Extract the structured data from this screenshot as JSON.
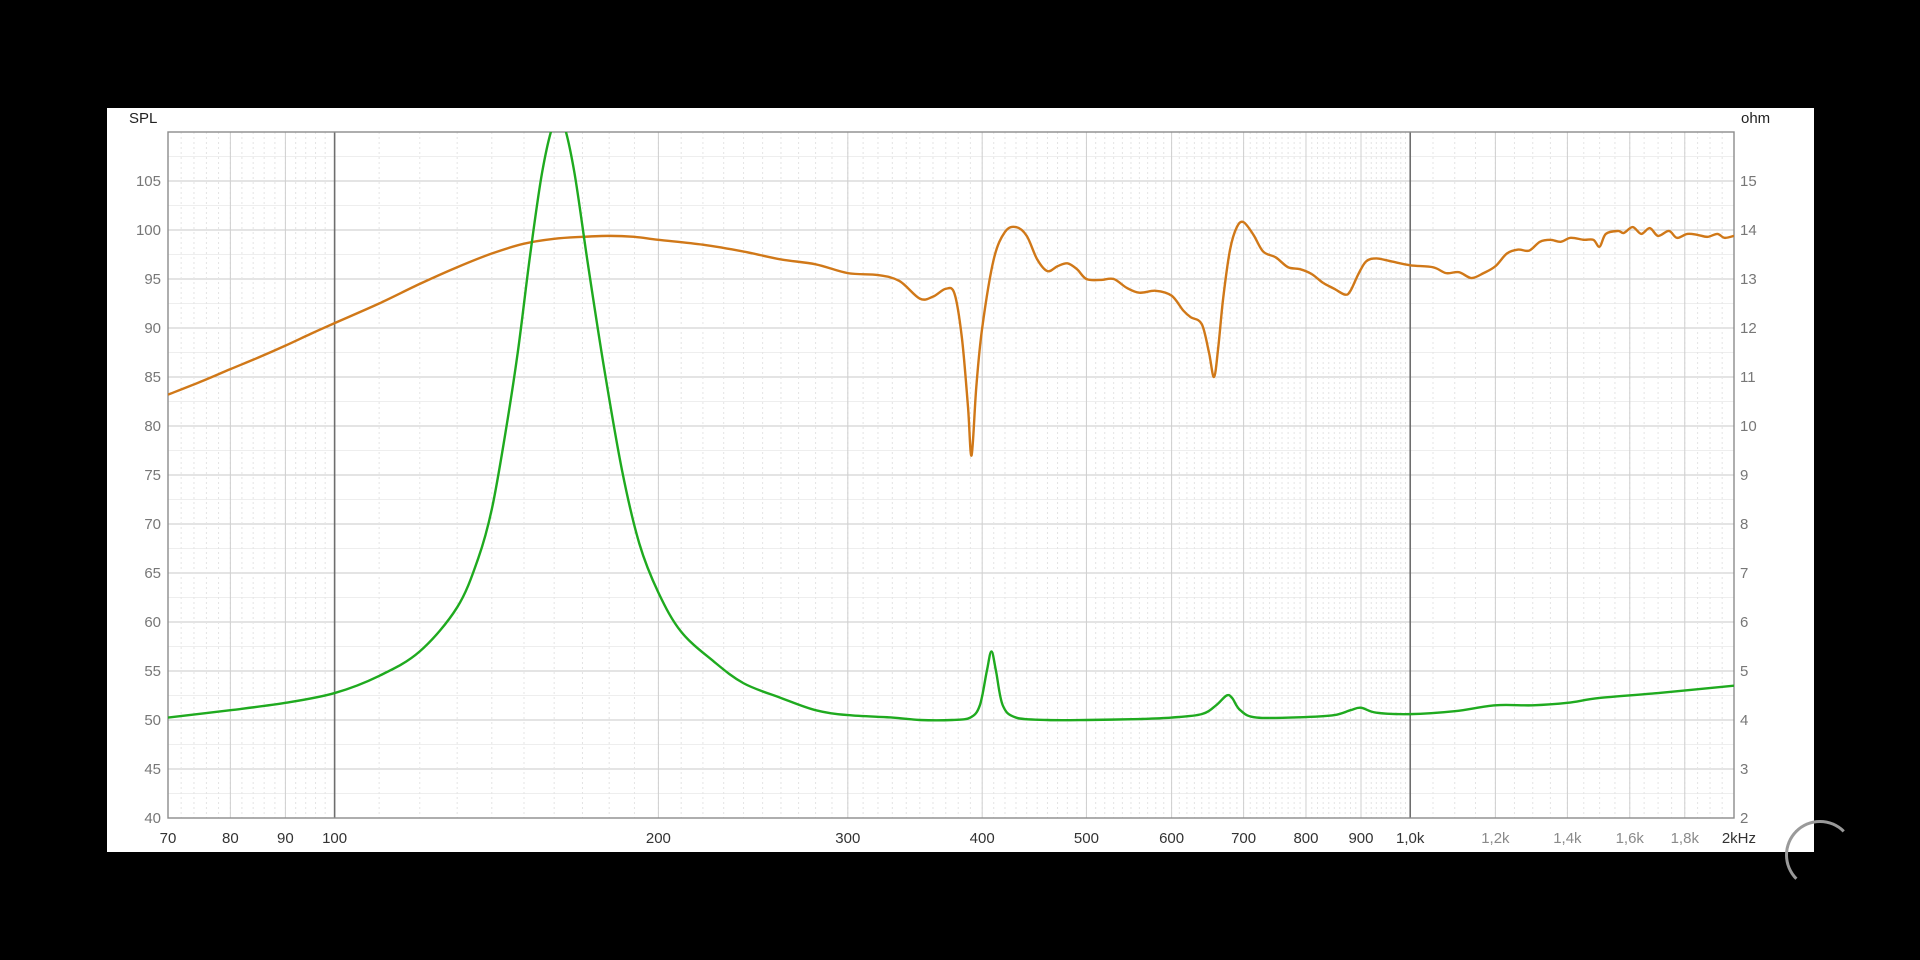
{
  "chart_data": {
    "type": "line",
    "x_scale": "log",
    "xlim": [
      70,
      2000
    ],
    "x_ticks": [
      {
        "value": 70,
        "label": "70",
        "major": true
      },
      {
        "value": 80,
        "label": "80",
        "major": true
      },
      {
        "value": 90,
        "label": "90",
        "major": true
      },
      {
        "value": 100,
        "label": "100",
        "major": true
      },
      {
        "value": 200,
        "label": "200",
        "major": true
      },
      {
        "value": 300,
        "label": "300",
        "major": true
      },
      {
        "value": 400,
        "label": "400",
        "major": true
      },
      {
        "value": 500,
        "label": "500",
        "major": true
      },
      {
        "value": 600,
        "label": "600",
        "major": true
      },
      {
        "value": 700,
        "label": "700",
        "major": true
      },
      {
        "value": 800,
        "label": "800",
        "major": true
      },
      {
        "value": 900,
        "label": "900",
        "major": true
      },
      {
        "value": 1000,
        "label": "1,0k",
        "major": true
      },
      {
        "value": 1200,
        "label": "1,2k",
        "major": false
      },
      {
        "value": 1400,
        "label": "1,4k",
        "major": false
      },
      {
        "value": 1600,
        "label": "1,6k",
        "major": false
      },
      {
        "value": 1800,
        "label": "1,8k",
        "major": false
      },
      {
        "value": 2000,
        "label": "2kHz",
        "major": true
      }
    ],
    "y_left": {
      "label": "SPL",
      "lim": [
        40,
        110
      ],
      "ticks": [
        40,
        45,
        50,
        55,
        60,
        65,
        70,
        75,
        80,
        85,
        90,
        95,
        100,
        105
      ]
    },
    "y_right": {
      "label": "ohm",
      "lim": [
        2,
        16
      ],
      "ticks": [
        2,
        3,
        4,
        5,
        6,
        7,
        8,
        9,
        10,
        11,
        12,
        13,
        14,
        15
      ]
    },
    "grid": true,
    "series": [
      {
        "axis": "left",
        "color": "#d07818",
        "points": [
          [
            70,
            83.2
          ],
          [
            75,
            84.5
          ],
          [
            80,
            85.8
          ],
          [
            85,
            87.0
          ],
          [
            90,
            88.2
          ],
          [
            95,
            89.4
          ],
          [
            100,
            90.5
          ],
          [
            110,
            92.5
          ],
          [
            120,
            94.5
          ],
          [
            130,
            96.2
          ],
          [
            140,
            97.6
          ],
          [
            150,
            98.6
          ],
          [
            160,
            99.1
          ],
          [
            170,
            99.3
          ],
          [
            180,
            99.4
          ],
          [
            190,
            99.3
          ],
          [
            200,
            99.0
          ],
          [
            220,
            98.5
          ],
          [
            240,
            97.8
          ],
          [
            260,
            97.0
          ],
          [
            280,
            96.5
          ],
          [
            300,
            95.6
          ],
          [
            320,
            95.4
          ],
          [
            335,
            94.8
          ],
          [
            350,
            93.0
          ],
          [
            360,
            93.2
          ],
          [
            370,
            94.0
          ],
          [
            377,
            93.5
          ],
          [
            383,
            89.0
          ],
          [
            388,
            82.0
          ],
          [
            391,
            77.0
          ],
          [
            395,
            84.0
          ],
          [
            400,
            90.0
          ],
          [
            410,
            97.0
          ],
          [
            420,
            99.8
          ],
          [
            430,
            100.3
          ],
          [
            440,
            99.4
          ],
          [
            450,
            97.0
          ],
          [
            460,
            95.8
          ],
          [
            470,
            96.3
          ],
          [
            480,
            96.6
          ],
          [
            490,
            96.0
          ],
          [
            500,
            95.0
          ],
          [
            515,
            94.9
          ],
          [
            530,
            95.0
          ],
          [
            545,
            94.1
          ],
          [
            560,
            93.6
          ],
          [
            580,
            93.8
          ],
          [
            600,
            93.3
          ],
          [
            615,
            91.8
          ],
          [
            625,
            91.1
          ],
          [
            640,
            90.4
          ],
          [
            650,
            87.5
          ],
          [
            657,
            85.0
          ],
          [
            663,
            88.0
          ],
          [
            670,
            93.0
          ],
          [
            680,
            98.0
          ],
          [
            690,
            100.3
          ],
          [
            700,
            100.8
          ],
          [
            715,
            99.5
          ],
          [
            730,
            97.8
          ],
          [
            750,
            97.2
          ],
          [
            770,
            96.2
          ],
          [
            790,
            96.0
          ],
          [
            810,
            95.5
          ],
          [
            830,
            94.6
          ],
          [
            850,
            94.0
          ],
          [
            870,
            93.4
          ],
          [
            880,
            93.8
          ],
          [
            895,
            95.5
          ],
          [
            910,
            96.8
          ],
          [
            930,
            97.1
          ],
          [
            960,
            96.8
          ],
          [
            1000,
            96.4
          ],
          [
            1050,
            96.2
          ],
          [
            1080,
            95.6
          ],
          [
            1110,
            95.7
          ],
          [
            1140,
            95.1
          ],
          [
            1170,
            95.6
          ],
          [
            1200,
            96.3
          ],
          [
            1230,
            97.6
          ],
          [
            1260,
            98.0
          ],
          [
            1290,
            97.9
          ],
          [
            1320,
            98.8
          ],
          [
            1350,
            99.0
          ],
          [
            1380,
            98.8
          ],
          [
            1410,
            99.2
          ],
          [
            1450,
            99.0
          ],
          [
            1480,
            99.0
          ],
          [
            1500,
            98.3
          ],
          [
            1520,
            99.6
          ],
          [
            1560,
            99.9
          ],
          [
            1580,
            99.7
          ],
          [
            1610,
            100.3
          ],
          [
            1640,
            99.6
          ],
          [
            1670,
            100.2
          ],
          [
            1700,
            99.4
          ],
          [
            1740,
            99.9
          ],
          [
            1770,
            99.2
          ],
          [
            1810,
            99.6
          ],
          [
            1850,
            99.5
          ],
          [
            1890,
            99.3
          ],
          [
            1930,
            99.6
          ],
          [
            1960,
            99.2
          ],
          [
            2000,
            99.4
          ]
        ]
      },
      {
        "axis": "right",
        "color": "#1faa1f",
        "points": [
          [
            70,
            4.05
          ],
          [
            80,
            4.2
          ],
          [
            90,
            4.35
          ],
          [
            100,
            4.55
          ],
          [
            110,
            4.9
          ],
          [
            120,
            5.4
          ],
          [
            130,
            6.3
          ],
          [
            136,
            7.3
          ],
          [
            140,
            8.3
          ],
          [
            144,
            9.8
          ],
          [
            148,
            11.5
          ],
          [
            152,
            13.5
          ],
          [
            156,
            15.2
          ],
          [
            160,
            16.2
          ],
          [
            163,
            16.2
          ],
          [
            167,
            15.2
          ],
          [
            172,
            13.3
          ],
          [
            178,
            11.2
          ],
          [
            185,
            9.1
          ],
          [
            192,
            7.6
          ],
          [
            200,
            6.6
          ],
          [
            210,
            5.8
          ],
          [
            225,
            5.2
          ],
          [
            240,
            4.75
          ],
          [
            260,
            4.45
          ],
          [
            280,
            4.2
          ],
          [
            300,
            4.1
          ],
          [
            330,
            4.05
          ],
          [
            350,
            4.0
          ],
          [
            375,
            4.0
          ],
          [
            390,
            4.05
          ],
          [
            398,
            4.3
          ],
          [
            404,
            5.0
          ],
          [
            408,
            5.4
          ],
          [
            412,
            5.0
          ],
          [
            418,
            4.3
          ],
          [
            430,
            4.05
          ],
          [
            460,
            4.0
          ],
          [
            500,
            4.0
          ],
          [
            560,
            4.02
          ],
          [
            600,
            4.05
          ],
          [
            640,
            4.12
          ],
          [
            660,
            4.3
          ],
          [
            675,
            4.5
          ],
          [
            683,
            4.45
          ],
          [
            695,
            4.2
          ],
          [
            720,
            4.05
          ],
          [
            800,
            4.06
          ],
          [
            850,
            4.1
          ],
          [
            880,
            4.2
          ],
          [
            900,
            4.25
          ],
          [
            930,
            4.15
          ],
          [
            1000,
            4.12
          ],
          [
            1100,
            4.18
          ],
          [
            1200,
            4.3
          ],
          [
            1300,
            4.3
          ],
          [
            1400,
            4.35
          ],
          [
            1500,
            4.45
          ],
          [
            1700,
            4.55
          ],
          [
            2000,
            4.7
          ]
        ]
      }
    ]
  }
}
